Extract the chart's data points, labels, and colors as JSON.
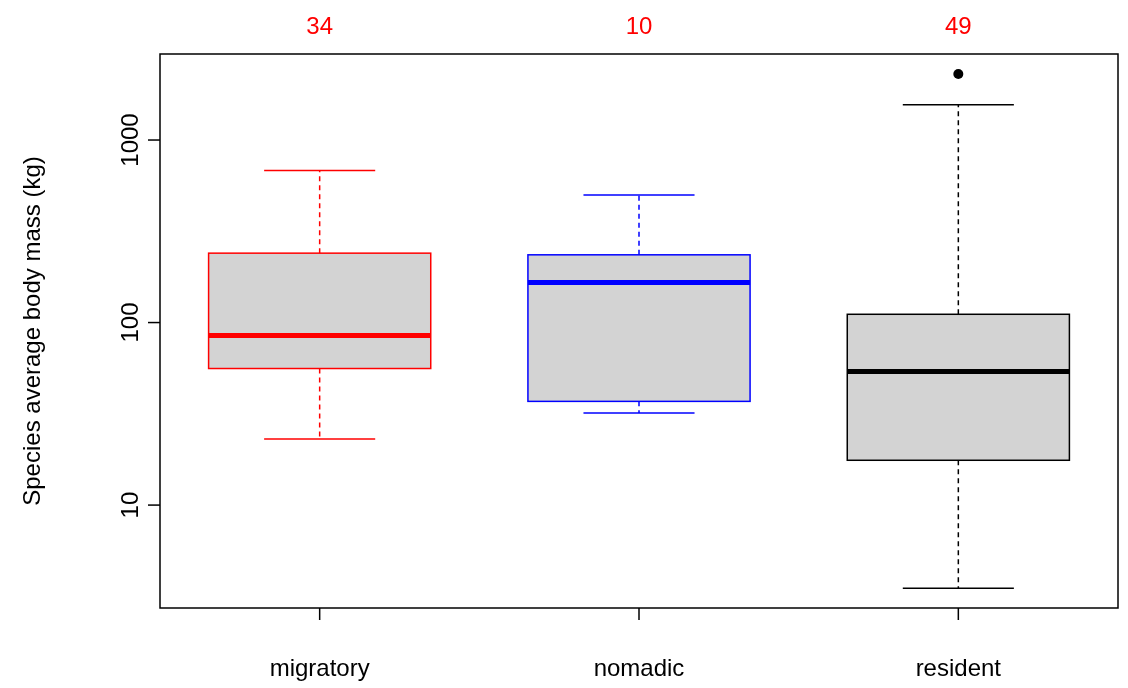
{
  "chart_data": {
    "type": "box",
    "ylabel": "Species average body mass (kg)",
    "categories": [
      "migratory",
      "nomadic",
      "resident"
    ],
    "colors": [
      "#ff0000",
      "#0000ff",
      "#000000"
    ],
    "boxes": [
      {
        "low": 23,
        "q1": 56,
        "median": 85,
        "q3": 240,
        "high": 680
      },
      {
        "low": 32,
        "q1": 37,
        "median": 166,
        "q3": 235,
        "high": 500
      },
      {
        "low": 3.5,
        "q1": 17.6,
        "median": 54,
        "q3": 111,
        "high": 1560,
        "outliers": [
          2300
        ]
      }
    ],
    "log": true,
    "ylim": [
      2.73,
      2960
    ],
    "yticks": [
      10,
      100,
      1000
    ],
    "grid": false,
    "annotations": [
      "34",
      "10",
      "49"
    ]
  }
}
